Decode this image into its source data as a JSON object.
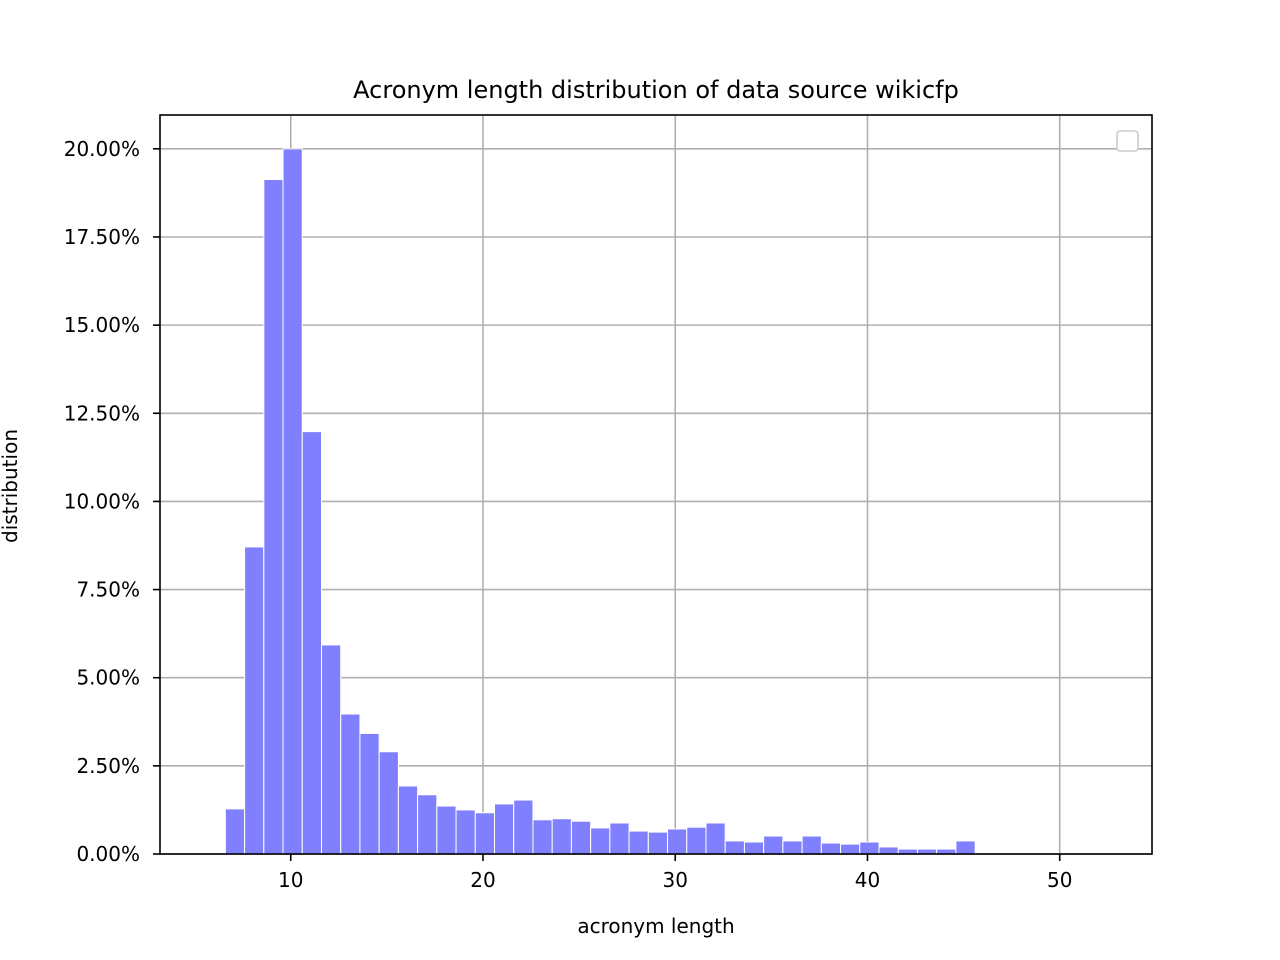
{
  "chart_data": {
    "type": "bar",
    "title": "Acronym length distribution of data source wikicfp",
    "xlabel": "acronym length",
    "ylabel": "distribution",
    "xlim": [
      3.2,
      54.8
    ],
    "ylim": [
      0,
      20.96
    ],
    "xticks": [
      10,
      20,
      30,
      40,
      50
    ],
    "yticks": [
      0,
      2.5,
      5,
      7.5,
      10,
      12.5,
      15,
      17.5,
      20
    ],
    "yticks_labels": [
      "0.00%",
      "2.50%",
      "5.00%",
      "7.50%",
      "10.00%",
      "12.50%",
      "15.00%",
      "17.50%",
      "20.00%"
    ],
    "grid": true,
    "legend": "top-right (empty)",
    "bar_color": "#8080ff",
    "bar_edge_color": "#ffffff",
    "bin_width": 1.0,
    "bins": [
      {
        "start": 6.6,
        "value": 1.28
      },
      {
        "start": 7.6,
        "value": 8.71
      },
      {
        "start": 8.6,
        "value": 19.13
      },
      {
        "start": 9.6,
        "value": 20.0
      },
      {
        "start": 10.6,
        "value": 11.98
      },
      {
        "start": 11.6,
        "value": 5.93
      },
      {
        "start": 12.6,
        "value": 3.97
      },
      {
        "start": 13.6,
        "value": 3.42
      },
      {
        "start": 14.6,
        "value": 2.9
      },
      {
        "start": 15.6,
        "value": 1.93
      },
      {
        "start": 16.6,
        "value": 1.68
      },
      {
        "start": 17.6,
        "value": 1.36
      },
      {
        "start": 18.6,
        "value": 1.25
      },
      {
        "start": 19.6,
        "value": 1.17
      },
      {
        "start": 20.6,
        "value": 1.42
      },
      {
        "start": 21.6,
        "value": 1.53
      },
      {
        "start": 22.6,
        "value": 0.97
      },
      {
        "start": 23.6,
        "value": 1.0
      },
      {
        "start": 24.6,
        "value": 0.93
      },
      {
        "start": 25.6,
        "value": 0.74
      },
      {
        "start": 26.6,
        "value": 0.88
      },
      {
        "start": 27.6,
        "value": 0.65
      },
      {
        "start": 28.6,
        "value": 0.62
      },
      {
        "start": 29.6,
        "value": 0.71
      },
      {
        "start": 30.6,
        "value": 0.76
      },
      {
        "start": 31.6,
        "value": 0.88
      },
      {
        "start": 32.6,
        "value": 0.37
      },
      {
        "start": 33.6,
        "value": 0.34
      },
      {
        "start": 34.6,
        "value": 0.51
      },
      {
        "start": 35.6,
        "value": 0.37
      },
      {
        "start": 36.6,
        "value": 0.51
      },
      {
        "start": 37.6,
        "value": 0.31
      },
      {
        "start": 38.6,
        "value": 0.28
      },
      {
        "start": 39.6,
        "value": 0.34
      },
      {
        "start": 40.6,
        "value": 0.2
      },
      {
        "start": 41.6,
        "value": 0.14
      },
      {
        "start": 42.6,
        "value": 0.14
      },
      {
        "start": 43.6,
        "value": 0.14
      },
      {
        "start": 44.6,
        "value": 0.37
      }
    ]
  }
}
